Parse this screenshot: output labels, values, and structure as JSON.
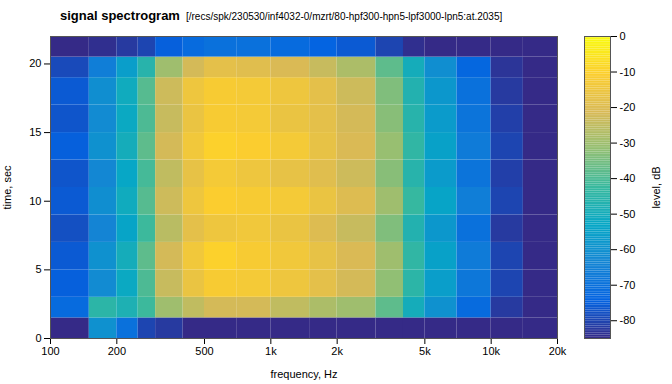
{
  "chart_data": {
    "type": "heatmap",
    "title": "signal spectrogram",
    "subtitle": "[/recs/spk/230530/inf4032-0/mzrt/80-hpf300-hpn5-lpf3000-lpn5:at.2035]",
    "xlabel": "frequency, Hz",
    "ylabel": "time, sec",
    "zlabel": "level, dB",
    "log": "x",
    "xlim": [
      100,
      20000
    ],
    "xticks": [
      100,
      200,
      500,
      {
        "value": 1000,
        "label": "1k"
      },
      {
        "value": 2000,
        "label": "2k"
      },
      {
        "value": 5000,
        "label": "5k"
      },
      {
        "value": 10000,
        "label": "10k"
      },
      {
        "value": 20000,
        "label": "20k"
      }
    ],
    "ylim": [
      0,
      22
    ],
    "yticks": [
      0,
      5,
      10,
      15,
      20
    ],
    "freq_bins": [
      100,
      150,
      200,
      250,
      300,
      400,
      500,
      700,
      1000,
      1500,
      2000,
      3000,
      4000,
      5000,
      7000,
      10000,
      14000,
      20000
    ],
    "time_bins": [
      0,
      1.5,
      3,
      5,
      7,
      9,
      11,
      13,
      15,
      17,
      19,
      20.5,
      22
    ],
    "cells": [
      [
        -85,
        -60,
        -70,
        -80,
        -82,
        -85,
        -85,
        -85,
        -85,
        -85,
        -85,
        -85,
        -85,
        -85,
        -85,
        -85,
        -85
      ],
      [
        -72,
        -45,
        -48,
        -42,
        -30,
        -25,
        -22,
        -22,
        -25,
        -28,
        -30,
        -38,
        -50,
        -60,
        -72,
        -82,
        -85
      ],
      [
        -75,
        -62,
        -52,
        -40,
        -24,
        -16,
        -12,
        -13,
        -15,
        -18,
        -22,
        -32,
        -45,
        -56,
        -68,
        -80,
        -85
      ],
      [
        -76,
        -60,
        -50,
        -38,
        -22,
        -14,
        -10,
        -12,
        -14,
        -17,
        -21,
        -30,
        -44,
        -55,
        -67,
        -80,
        -85
      ],
      [
        -78,
        -64,
        -54,
        -42,
        -26,
        -18,
        -15,
        -14,
        -16,
        -20,
        -24,
        -34,
        -47,
        -58,
        -70,
        -82,
        -85
      ],
      [
        -76,
        -61,
        -51,
        -39,
        -23,
        -15,
        -11,
        -12,
        -13,
        -16,
        -20,
        -30,
        -43,
        -54,
        -66,
        -80,
        -85
      ],
      [
        -77,
        -63,
        -53,
        -41,
        -25,
        -17,
        -13,
        -15,
        -17,
        -19,
        -23,
        -33,
        -46,
        -57,
        -69,
        -81,
        -85
      ],
      [
        -75,
        -60,
        -50,
        -38,
        -22,
        -14,
        -10,
        -11,
        -13,
        -17,
        -21,
        -31,
        -44,
        -55,
        -67,
        -80,
        -85
      ],
      [
        -77,
        -62,
        -52,
        -40,
        -24,
        -16,
        -12,
        -13,
        -16,
        -18,
        -22,
        -33,
        -46,
        -57,
        -69,
        -81,
        -85
      ],
      [
        -76,
        -61,
        -51,
        -39,
        -23,
        -15,
        -12,
        -13,
        -15,
        -18,
        -23,
        -34,
        -47,
        -58,
        -70,
        -82,
        -85
      ],
      [
        -79,
        -66,
        -56,
        -46,
        -30,
        -22,
        -18,
        -19,
        -21,
        -24,
        -28,
        -38,
        -50,
        -61,
        -73,
        -83,
        -85
      ],
      [
        -85,
        -84,
        -82,
        -80,
        -75,
        -72,
        -70,
        -70,
        -72,
        -74,
        -76,
        -80,
        -84,
        -85,
        -85,
        -85,
        -85
      ]
    ],
    "color_range": [
      -85,
      0
    ],
    "color_ticks": [
      -80,
      -70,
      -60,
      -50,
      -40,
      -30,
      -20,
      -10,
      0
    ]
  }
}
